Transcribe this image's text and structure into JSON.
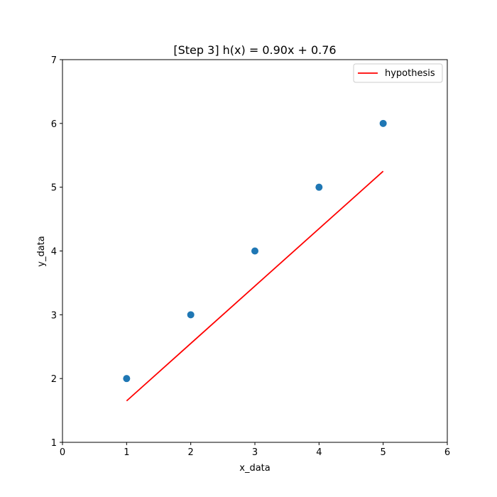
{
  "chart_data": {
    "type": "scatter",
    "title": "[Step 3] h(x) = 0.90x + 0.76",
    "xlabel": "x_data",
    "ylabel": "y_data",
    "xlim": [
      0,
      6
    ],
    "ylim": [
      1,
      7
    ],
    "xticks": [
      0,
      1,
      2,
      3,
      4,
      5,
      6
    ],
    "yticks": [
      1,
      2,
      3,
      4,
      5,
      6,
      7
    ],
    "grid": false,
    "legend_position": "top-right",
    "series": [
      {
        "kind": "scatter",
        "color": "#1f77b4",
        "x": [
          1,
          2,
          3,
          4,
          5
        ],
        "y": [
          2,
          3,
          4,
          5,
          6
        ]
      },
      {
        "name": "hypothesis",
        "kind": "line",
        "color": "#ff0000",
        "x": [
          1,
          5
        ],
        "y": [
          1.65,
          5.25
        ]
      }
    ]
  }
}
